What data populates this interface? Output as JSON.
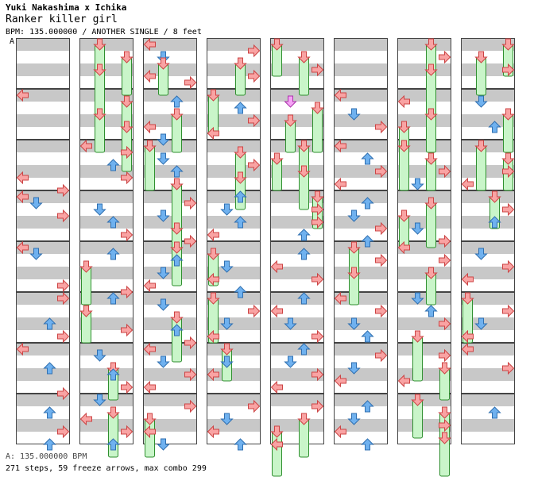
{
  "header": {
    "artist": "Yuki Nakashima x Ichika",
    "song": "Ranker killer girl",
    "meta": "BPM: 135.000000 / ANOTHER SINGLE / 8 feet"
  },
  "section_mark": "A",
  "footer": {
    "bpm_line": "A: 135.000000 BPM",
    "stats": "271 steps, 59 freeze arrows, max combo 299"
  },
  "colors": {
    "stripe": "#c8c8c8",
    "border": "#444444",
    "left_right_arrow": "#f9a3a3",
    "up_down_arrow": "#6fb1ef",
    "freeze_body": "#c9f5c9",
    "freeze_border": "#2f8f2f",
    "shock_arrow": "#f5a3f5"
  },
  "icons": [
    "arrow-left-icon",
    "arrow-down-icon",
    "arrow-up-icon",
    "arrow-right-icon",
    "freeze-arrow-icon"
  ],
  "chart": {
    "columns": 8,
    "measures_per_column": 8,
    "lanes": [
      "left",
      "down",
      "up",
      "right"
    ],
    "notes": [
      [
        [
          1,
          0,
          "L"
        ],
        [
          2,
          5,
          "L"
        ],
        [
          2,
          7,
          "R"
        ],
        [
          3,
          0,
          "L"
        ],
        [
          3,
          1,
          "D"
        ],
        [
          3,
          3,
          "R"
        ],
        [
          4,
          0,
          "L"
        ],
        [
          4,
          1,
          "D"
        ],
        [
          4,
          6,
          "R"
        ],
        [
          5,
          0,
          "R"
        ],
        [
          5,
          4,
          "U"
        ],
        [
          5,
          6,
          "R"
        ],
        [
          6,
          0,
          "L"
        ],
        [
          6,
          3,
          "U"
        ],
        [
          6,
          7,
          "R"
        ],
        [
          7,
          2,
          "U"
        ],
        [
          7,
          5,
          "R"
        ],
        [
          7,
          7,
          "U"
        ]
      ],
      [
        [
          0,
          0,
          "F"
        ],
        [
          0,
          2,
          "F"
        ],
        [
          0,
          4,
          "F"
        ],
        [
          1,
          1,
          "F"
        ],
        [
          1,
          3,
          "F"
        ],
        [
          1,
          5,
          "F"
        ],
        [
          2,
          0,
          "L"
        ],
        [
          2,
          1,
          "R"
        ],
        [
          2,
          3,
          "U"
        ],
        [
          2,
          5,
          "R"
        ],
        [
          3,
          2,
          "D"
        ],
        [
          3,
          4,
          "U"
        ],
        [
          3,
          6,
          "R"
        ],
        [
          4,
          1,
          "U"
        ],
        [
          4,
          3,
          "F"
        ],
        [
          4,
          7,
          "R"
        ],
        [
          5,
          0,
          "U"
        ],
        [
          5,
          2,
          "F"
        ],
        [
          5,
          5,
          "R"
        ],
        [
          6,
          1,
          "D"
        ],
        [
          6,
          3,
          "F"
        ],
        [
          6,
          4,
          "U"
        ],
        [
          6,
          6,
          "R"
        ],
        [
          7,
          0,
          "D"
        ],
        [
          7,
          2,
          "F"
        ],
        [
          7,
          3,
          "L"
        ],
        [
          7,
          5,
          "R"
        ],
        [
          7,
          7,
          "U"
        ]
      ],
      [
        [
          0,
          0,
          "L"
        ],
        [
          0,
          2,
          "D"
        ],
        [
          0,
          3,
          "F"
        ],
        [
          0,
          5,
          "L"
        ],
        [
          0,
          6,
          "R"
        ],
        [
          1,
          1,
          "U"
        ],
        [
          1,
          3,
          "F"
        ],
        [
          1,
          5,
          "L"
        ],
        [
          1,
          7,
          "D"
        ],
        [
          2,
          0,
          "F"
        ],
        [
          2,
          2,
          "D"
        ],
        [
          2,
          4,
          "U"
        ],
        [
          2,
          6,
          "F"
        ],
        [
          3,
          1,
          "R"
        ],
        [
          3,
          3,
          "D"
        ],
        [
          3,
          5,
          "F"
        ],
        [
          3,
          7,
          "R"
        ],
        [
          4,
          0,
          "F"
        ],
        [
          4,
          2,
          "U"
        ],
        [
          4,
          4,
          "D"
        ],
        [
          4,
          6,
          "L"
        ],
        [
          5,
          1,
          "D"
        ],
        [
          5,
          3,
          "F"
        ],
        [
          5,
          5,
          "U"
        ],
        [
          5,
          7,
          "R"
        ],
        [
          6,
          0,
          "L"
        ],
        [
          6,
          2,
          "D"
        ],
        [
          6,
          4,
          "R"
        ],
        [
          6,
          6,
          "L"
        ],
        [
          7,
          1,
          "R"
        ],
        [
          7,
          3,
          "F"
        ],
        [
          7,
          5,
          "L"
        ],
        [
          7,
          7,
          "D"
        ]
      ],
      [
        [
          0,
          1,
          "R"
        ],
        [
          0,
          3,
          "F"
        ],
        [
          0,
          5,
          "R"
        ],
        [
          1,
          0,
          "F"
        ],
        [
          1,
          2,
          "U"
        ],
        [
          1,
          4,
          "R"
        ],
        [
          1,
          6,
          "L"
        ],
        [
          2,
          1,
          "F"
        ],
        [
          2,
          3,
          "R"
        ],
        [
          2,
          5,
          "F"
        ],
        [
          3,
          0,
          "U"
        ],
        [
          3,
          2,
          "D"
        ],
        [
          3,
          4,
          "U"
        ],
        [
          3,
          6,
          "L"
        ],
        [
          4,
          1,
          "F"
        ],
        [
          4,
          3,
          "D"
        ],
        [
          4,
          5,
          "L"
        ],
        [
          4,
          7,
          "U"
        ],
        [
          5,
          0,
          "F"
        ],
        [
          5,
          2,
          "R"
        ],
        [
          5,
          4,
          "D"
        ],
        [
          5,
          6,
          "L"
        ],
        [
          6,
          0,
          "F"
        ],
        [
          6,
          2,
          "D"
        ],
        [
          6,
          4,
          "L"
        ],
        [
          7,
          1,
          "R"
        ],
        [
          7,
          3,
          "D"
        ],
        [
          7,
          5,
          "L"
        ],
        [
          7,
          7,
          "U"
        ]
      ],
      [
        [
          0,
          0,
          "F"
        ],
        [
          0,
          2,
          "F"
        ],
        [
          0,
          4,
          "R"
        ],
        [
          1,
          1,
          "S"
        ],
        [
          1,
          2,
          "F"
        ],
        [
          1,
          4,
          "F"
        ],
        [
          2,
          0,
          "F"
        ],
        [
          2,
          2,
          "F"
        ],
        [
          2,
          4,
          "F"
        ],
        [
          3,
          0,
          "F"
        ],
        [
          3,
          2,
          "R"
        ],
        [
          3,
          4,
          "R"
        ],
        [
          3,
          6,
          "U"
        ],
        [
          4,
          1,
          "U"
        ],
        [
          4,
          3,
          "L"
        ],
        [
          4,
          5,
          "R"
        ],
        [
          5,
          0,
          "U"
        ],
        [
          5,
          2,
          "L"
        ],
        [
          5,
          4,
          "D"
        ],
        [
          5,
          6,
          "R"
        ],
        [
          6,
          0,
          "U"
        ],
        [
          6,
          2,
          "D"
        ],
        [
          6,
          4,
          "R"
        ],
        [
          6,
          6,
          "L"
        ],
        [
          7,
          1,
          "R"
        ],
        [
          7,
          3,
          "F"
        ],
        [
          7,
          5,
          "F"
        ],
        [
          7,
          7,
          "L"
        ]
      ],
      [
        [
          1,
          0,
          "L"
        ],
        [
          1,
          3,
          "D"
        ],
        [
          1,
          5,
          "R"
        ],
        [
          2,
          0,
          "L"
        ],
        [
          2,
          2,
          "U"
        ],
        [
          2,
          4,
          "R"
        ],
        [
          2,
          6,
          "L"
        ],
        [
          3,
          1,
          "U"
        ],
        [
          3,
          3,
          "D"
        ],
        [
          3,
          5,
          "R"
        ],
        [
          3,
          7,
          "U"
        ],
        [
          4,
          0,
          "F"
        ],
        [
          4,
          2,
          "R"
        ],
        [
          4,
          4,
          "F"
        ],
        [
          5,
          0,
          "L"
        ],
        [
          5,
          2,
          "R"
        ],
        [
          5,
          4,
          "D"
        ],
        [
          5,
          6,
          "U"
        ],
        [
          6,
          1,
          "R"
        ],
        [
          6,
          3,
          "D"
        ],
        [
          6,
          5,
          "L"
        ],
        [
          7,
          1,
          "U"
        ],
        [
          7,
          3,
          "D"
        ],
        [
          7,
          5,
          "L"
        ],
        [
          7,
          7,
          "U"
        ]
      ],
      [
        [
          0,
          0,
          "F"
        ],
        [
          0,
          2,
          "R"
        ],
        [
          0,
          4,
          "F"
        ],
        [
          1,
          1,
          "L"
        ],
        [
          1,
          3,
          "F"
        ],
        [
          1,
          5,
          "F"
        ],
        [
          2,
          0,
          "F"
        ],
        [
          2,
          2,
          "F"
        ],
        [
          2,
          4,
          "R"
        ],
        [
          2,
          6,
          "D"
        ],
        [
          3,
          1,
          "F"
        ],
        [
          3,
          3,
          "F"
        ],
        [
          3,
          5,
          "D"
        ],
        [
          3,
          7,
          "R"
        ],
        [
          4,
          0,
          "L"
        ],
        [
          4,
          2,
          "R"
        ],
        [
          4,
          4,
          "F"
        ],
        [
          5,
          0,
          "D"
        ],
        [
          5,
          2,
          "U"
        ],
        [
          5,
          4,
          "R"
        ],
        [
          5,
          6,
          "F"
        ],
        [
          6,
          1,
          "R"
        ],
        [
          6,
          3,
          "F"
        ],
        [
          6,
          5,
          "L"
        ],
        [
          7,
          0,
          "F"
        ],
        [
          7,
          2,
          "F"
        ],
        [
          7,
          4,
          "R"
        ],
        [
          7,
          6,
          "F"
        ]
      ],
      [
        [
          0,
          0,
          "F"
        ],
        [
          0,
          2,
          "F"
        ],
        [
          0,
          4,
          "R"
        ],
        [
          1,
          1,
          "D"
        ],
        [
          1,
          3,
          "F"
        ],
        [
          1,
          5,
          "U"
        ],
        [
          2,
          0,
          "F"
        ],
        [
          2,
          2,
          "F"
        ],
        [
          2,
          4,
          "R"
        ],
        [
          2,
          6,
          "L"
        ],
        [
          3,
          0,
          "F"
        ],
        [
          3,
          2,
          "R"
        ],
        [
          3,
          4,
          "U"
        ],
        [
          4,
          1,
          "D"
        ],
        [
          4,
          3,
          "R"
        ],
        [
          4,
          5,
          "L"
        ],
        [
          5,
          0,
          "F"
        ],
        [
          5,
          2,
          "R"
        ],
        [
          5,
          4,
          "D"
        ],
        [
          5,
          6,
          "L"
        ],
        [
          6,
          0,
          "L"
        ],
        [
          6,
          3,
          "R"
        ],
        [
          7,
          2,
          "U"
        ]
      ]
    ]
  }
}
